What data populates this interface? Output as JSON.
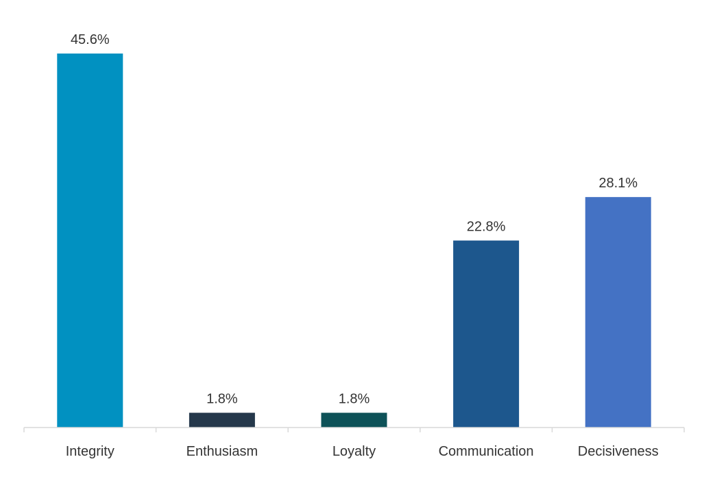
{
  "chart_data": {
    "type": "bar",
    "categories": [
      "Integrity",
      "Enthusiasm",
      "Loyalty",
      "Communication",
      "Decisiveness"
    ],
    "values": [
      45.6,
      1.8,
      1.8,
      22.8,
      28.1
    ],
    "data_labels": [
      "45.6%",
      "1.8%",
      "1.8%",
      "22.8%",
      "28.1%"
    ],
    "colors": [
      "#0191C1",
      "#25384B",
      "#0E5258",
      "#1D578D",
      "#4472C4"
    ],
    "title": "",
    "xlabel": "",
    "ylabel": "",
    "ylim": [
      0,
      45.6
    ],
    "grid": false,
    "legend": "none"
  }
}
